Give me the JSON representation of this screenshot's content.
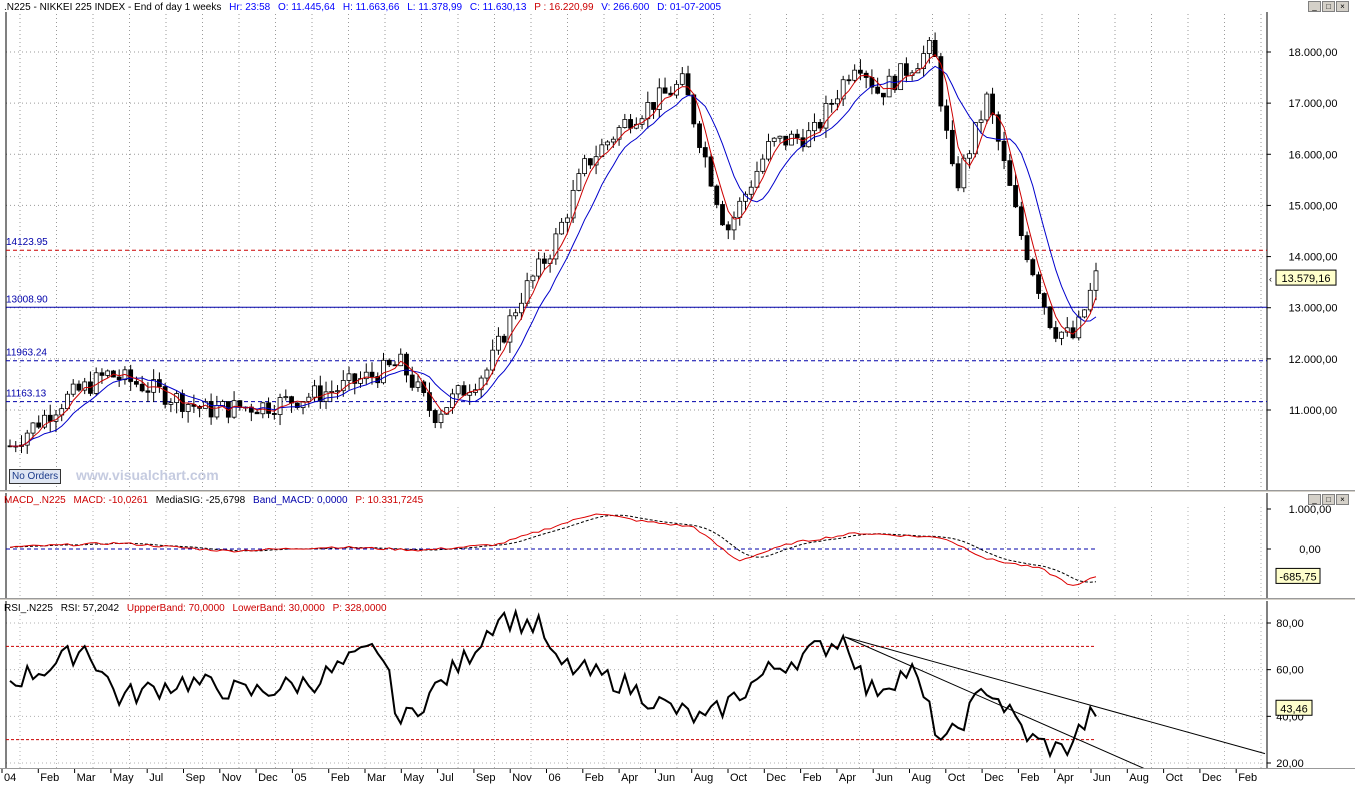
{
  "main": {
    "symbol": ".N225 - NIKKEI 225 INDEX - End of day 1 weeks",
    "hr": "Hr: 23:58",
    "open": "O: 11.445,64",
    "high": "H: 11.663,66",
    "low": "L: 11.378,99",
    "close": "C: 11.630,13",
    "p": "P : 16.220,99",
    "volume": "V: 266.600",
    "date": "D: 01-07-2005",
    "price_labels": [
      "18.000,00",
      "17.000,00",
      "16.000,00",
      "15.000,00",
      "14.000,00",
      "13.000,00",
      "12.000,00",
      "11.000,00"
    ],
    "current_price": "13.579,16",
    "levels": [
      {
        "label": "14123.95",
        "value": 14123.95,
        "color": "#cc0000",
        "dash": true
      },
      {
        "label": "13008.90",
        "value": 13008.9,
        "color": "#0000aa",
        "dash": false
      },
      {
        "label": "11963.24",
        "value": 11963.24,
        "color": "#0000aa",
        "dash": true
      },
      {
        "label": "11163.13",
        "value": 11163.13,
        "color": "#0000aa",
        "dash": true
      }
    ],
    "watermark": "www.visualchart.com",
    "no_orders": "No Orders"
  },
  "macd": {
    "title": "MACD_.N225",
    "macd": "MACD: -10,0261",
    "signal": "MediaSIG: -25,6798",
    "band": "Band_MACD: 0,0000",
    "p": "P: 10.331,7245",
    "axis_labels": [
      "1.000,00",
      "0,00"
    ],
    "current": "-685,75"
  },
  "rsi": {
    "title": "RSI_.N225",
    "rsi": "RSI: 57,2042",
    "upper": "UppperBand: 70,0000",
    "lower": "LowerBand: 30,0000",
    "p": "P: 328,0000",
    "axis_labels": [
      "80,00",
      "60,00",
      "40,00",
      "20,00"
    ],
    "current": "43,46"
  },
  "time_axis": [
    "04",
    "Feb",
    "Mar",
    "May",
    "Jul",
    "Sep",
    "Nov",
    "Dec",
    "05",
    "Feb",
    "Mar",
    "May",
    "Jul",
    "Sep",
    "Nov",
    "06",
    "Feb",
    "Apr",
    "Jun",
    "Aug",
    "Oct",
    "Dec",
    "Feb",
    "Apr",
    "Jun",
    "Aug",
    "Oct",
    "Dec",
    "Feb",
    "Apr",
    "Jun",
    "Aug",
    "Oct",
    "Dec",
    "Feb"
  ],
  "chart_data": [
    {
      "type": "candlestick",
      "ylim": [
        10000,
        18500
      ],
      "keypoints": [
        {
          "t": 0,
          "v": 10300
        },
        {
          "t": 0.05,
          "v": 11200
        },
        {
          "t": 0.09,
          "v": 11700
        },
        {
          "t": 0.12,
          "v": 11500
        },
        {
          "t": 0.18,
          "v": 11000
        },
        {
          "t": 0.24,
          "v": 11100
        },
        {
          "t": 0.3,
          "v": 11400
        },
        {
          "t": 0.36,
          "v": 11900
        },
        {
          "t": 0.39,
          "v": 10900
        },
        {
          "t": 0.44,
          "v": 11800
        },
        {
          "t": 0.47,
          "v": 13200
        },
        {
          "t": 0.5,
          "v": 14200
        },
        {
          "t": 0.53,
          "v": 15800
        },
        {
          "t": 0.57,
          "v": 16700
        },
        {
          "t": 0.62,
          "v": 17400
        },
        {
          "t": 0.66,
          "v": 14500
        },
        {
          "t": 0.7,
          "v": 16200
        },
        {
          "t": 0.74,
          "v": 16400
        },
        {
          "t": 0.78,
          "v": 17900
        },
        {
          "t": 0.8,
          "v": 17200
        },
        {
          "t": 0.85,
          "v": 18100
        },
        {
          "t": 0.87,
          "v": 15300
        },
        {
          "t": 0.9,
          "v": 17100
        },
        {
          "t": 0.93,
          "v": 14500
        },
        {
          "t": 0.96,
          "v": 12600
        },
        {
          "t": 0.98,
          "v": 12400
        },
        {
          "t": 1,
          "v": 13600
        }
      ]
    },
    {
      "type": "line",
      "name": "MACD",
      "ylim": [
        -1000,
        1200
      ],
      "keypoints": [
        {
          "t": 0,
          "v": 50
        },
        {
          "t": 0.1,
          "v": 150
        },
        {
          "t": 0.2,
          "v": -50
        },
        {
          "t": 0.3,
          "v": 50
        },
        {
          "t": 0.38,
          "v": -30
        },
        {
          "t": 0.45,
          "v": 120
        },
        {
          "t": 0.54,
          "v": 900
        },
        {
          "t": 0.58,
          "v": 700
        },
        {
          "t": 0.63,
          "v": 550
        },
        {
          "t": 0.67,
          "v": -300
        },
        {
          "t": 0.72,
          "v": 150
        },
        {
          "t": 0.78,
          "v": 400
        },
        {
          "t": 0.86,
          "v": 280
        },
        {
          "t": 0.9,
          "v": -250
        },
        {
          "t": 0.95,
          "v": -500
        },
        {
          "t": 0.98,
          "v": -950
        },
        {
          "t": 1,
          "v": -685
        }
      ]
    },
    {
      "type": "line",
      "name": "RSI",
      "ylim": [
        10,
        90
      ],
      "upper": 70,
      "lower": 30,
      "keypoints": [
        {
          "t": 0,
          "v": 55
        },
        {
          "t": 0.04,
          "v": 62
        },
        {
          "t": 0.07,
          "v": 70
        },
        {
          "t": 0.1,
          "v": 48
        },
        {
          "t": 0.16,
          "v": 55
        },
        {
          "t": 0.22,
          "v": 50
        },
        {
          "t": 0.28,
          "v": 55
        },
        {
          "t": 0.34,
          "v": 70
        },
        {
          "t": 0.36,
          "v": 37
        },
        {
          "t": 0.42,
          "v": 65
        },
        {
          "t": 0.45,
          "v": 83
        },
        {
          "t": 0.49,
          "v": 78
        },
        {
          "t": 0.5,
          "v": 63
        },
        {
          "t": 0.56,
          "v": 55
        },
        {
          "t": 0.6,
          "v": 45
        },
        {
          "t": 0.64,
          "v": 38
        },
        {
          "t": 0.7,
          "v": 60
        },
        {
          "t": 0.77,
          "v": 74
        },
        {
          "t": 0.79,
          "v": 50
        },
        {
          "t": 0.83,
          "v": 60
        },
        {
          "t": 0.86,
          "v": 27
        },
        {
          "t": 0.9,
          "v": 53
        },
        {
          "t": 0.94,
          "v": 30
        },
        {
          "t": 0.97,
          "v": 25
        },
        {
          "t": 1,
          "v": 43
        }
      ]
    }
  ]
}
